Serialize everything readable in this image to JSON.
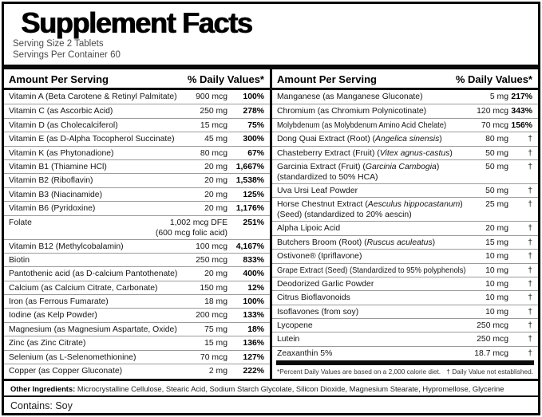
{
  "header": {
    "title": "Supplement Facts",
    "serving_size": "Serving Size 2 Tablets",
    "servings_per_container": "Servings Per Container 60"
  },
  "table": {
    "amount_header": "Amount Per Serving",
    "dv_header": "% Daily Values*",
    "left_rows": [
      {
        "name": "Vitamin A (Beta Carotene & Retinyl Palmitate)",
        "amount": "900 mcg",
        "dv": "100%"
      },
      {
        "name": "Vitamin C (as Ascorbic Acid)",
        "amount": "250 mg",
        "dv": "278%"
      },
      {
        "name": "Vitamin D (as Cholecalciferol)",
        "amount": "15 mcg",
        "dv": "75%"
      },
      {
        "name": "Vitamin E (as D-Alpha Tocopherol Succinate)",
        "amount": "45 mg",
        "dv": "300%"
      },
      {
        "name": "Vitamin K (as Phytonadione)",
        "amount": "80 mcg",
        "dv": "67%"
      },
      {
        "name": "Vitamin B1 (Thiamine HCl)",
        "amount": "20 mg",
        "dv": "1,667%"
      },
      {
        "name": "Vitamin B2 (Riboflavin)",
        "amount": "20 mg",
        "dv": "1,538%"
      },
      {
        "name": "Vitamin B3 (Niacinamide)",
        "amount": "20 mg",
        "dv": "125%"
      },
      {
        "name": "Vitamin B6 (Pyridoxine)",
        "amount": "20 mg",
        "dv": "1,176%"
      },
      {
        "name": "Folate",
        "amount": "1,002 mcg DFE",
        "amount2": "(600 mcg folic acid)",
        "dv": "251%"
      },
      {
        "name": "Vitamin B12 (Methylcobalamin)",
        "amount": "100 mcg",
        "dv": "4,167%"
      },
      {
        "name": "Biotin",
        "amount": "250 mcg",
        "dv": "833%"
      },
      {
        "name": "Pantothenic acid (as D-calcium Pantothenate)",
        "amount": "20 mg",
        "dv": "400%"
      },
      {
        "name": "Calcium (as Calcium Citrate, Carbonate)",
        "amount": "150 mg",
        "dv": "12%"
      },
      {
        "name": "Iron (as Ferrous Fumarate)",
        "amount": "18 mg",
        "dv": "100%"
      },
      {
        "name": "Iodine (as Kelp Powder)",
        "amount": "200 mcg",
        "dv": "133%"
      },
      {
        "name": "Magnesium (as Magnesium Aspartate, Oxide)",
        "amount": "75 mg",
        "dv": "18%"
      },
      {
        "name": "Zinc (as Zinc Citrate)",
        "amount": "15 mg",
        "dv": "136%"
      },
      {
        "name": "Selenium (as L-Selenomethionine)",
        "amount": "70 mcg",
        "dv": "127%"
      },
      {
        "name": "Copper (as Copper Gluconate)",
        "amount": "2 mg",
        "dv": "222%"
      }
    ],
    "right_rows": [
      {
        "name": "Manganese (as Manganese Gluconate)",
        "amount": "5 mg",
        "dv": "217%"
      },
      {
        "name": "Chromium (as Chromium Polynicotinate)",
        "amount": "120 mcg",
        "dv": "343%"
      },
      {
        "name": "Molybdenum (as Molybdenum Amino Acid Chelate)",
        "amount": "70 mcg",
        "dv": "156%",
        "fit": true
      },
      {
        "parts": [
          {
            "t": "Dong Quai Extract (Root) ("
          },
          {
            "t": "Angelica sinensis",
            "i": true
          },
          {
            "t": ")"
          }
        ],
        "amount": "80 mg",
        "dv": "†"
      },
      {
        "parts": [
          {
            "t": "Chasteberry Extract (Fruit) ("
          },
          {
            "t": "Vitex agnus-castus",
            "i": true
          },
          {
            "t": ")"
          }
        ],
        "amount": "50 mg",
        "dv": "†"
      },
      {
        "parts": [
          {
            "t": "Garcinia Extract (Fruit) ("
          },
          {
            "t": "Garcinia Cambogia",
            "i": true
          },
          {
            "t": ")"
          },
          {
            "br": true
          },
          {
            "t": "(standardized to 50% HCA)"
          }
        ],
        "amount": "50 mg",
        "dv": "†"
      },
      {
        "name": "Uva Ursi Leaf Powder",
        "amount": "50 mg",
        "dv": "†"
      },
      {
        "parts": [
          {
            "t": "Horse Chestnut Extract ("
          },
          {
            "t": "Aesculus hippocastanum",
            "i": true
          },
          {
            "t": ")"
          },
          {
            "br": true
          },
          {
            "t": "(Seed) (standardized to 20% aescin)"
          }
        ],
        "amount": "25 mg",
        "dv": "†"
      },
      {
        "name": "Alpha Lipoic Acid",
        "amount": "20 mg",
        "dv": "†"
      },
      {
        "parts": [
          {
            "t": "Butchers Broom (Root) ("
          },
          {
            "t": "Ruscus aculeatus",
            "i": true
          },
          {
            "t": ")"
          }
        ],
        "amount": "15 mg",
        "dv": "†"
      },
      {
        "name": "Ostivone® (Ipriflavone)",
        "amount": "10 mg",
        "dv": "†"
      },
      {
        "name": "Grape Extract (Seed) (Standardized to 95% polyphenols)",
        "amount": "10 mg",
        "dv": "†",
        "fit": true
      },
      {
        "name": "Deodorized Garlic Powder",
        "amount": "10 mg",
        "dv": "†"
      },
      {
        "name": "Citrus Bioflavonoids",
        "amount": "10 mg",
        "dv": "†"
      },
      {
        "name": "Isoflavones (from soy)",
        "amount": "10 mg",
        "dv": "†"
      },
      {
        "name": "Lycopene",
        "amount": "250 mcg",
        "dv": "†"
      },
      {
        "name": "Lutein",
        "amount": "250 mcg",
        "dv": "†"
      },
      {
        "name": "Zeaxanthin 5%",
        "amount": "18.7 mcg",
        "dv": "†"
      }
    ]
  },
  "footnotes": {
    "percent": "*Percent Daily Values are based on a 2,000 calorie diet.",
    "dagger": "† Daily Value not established."
  },
  "other_ingredients": {
    "label": "Other Ingredients:",
    "text": " Microcrystalline Cellulose, Stearic Acid, Sodium Starch Glycolate, Silicon Dioxide, Magnesium Stearate, Hypromellose, Glycerine"
  },
  "contains": "Contains: Soy",
  "colors": {
    "border": "#000000",
    "row_separator": "#9b9b9b",
    "background": "#ffffff"
  }
}
